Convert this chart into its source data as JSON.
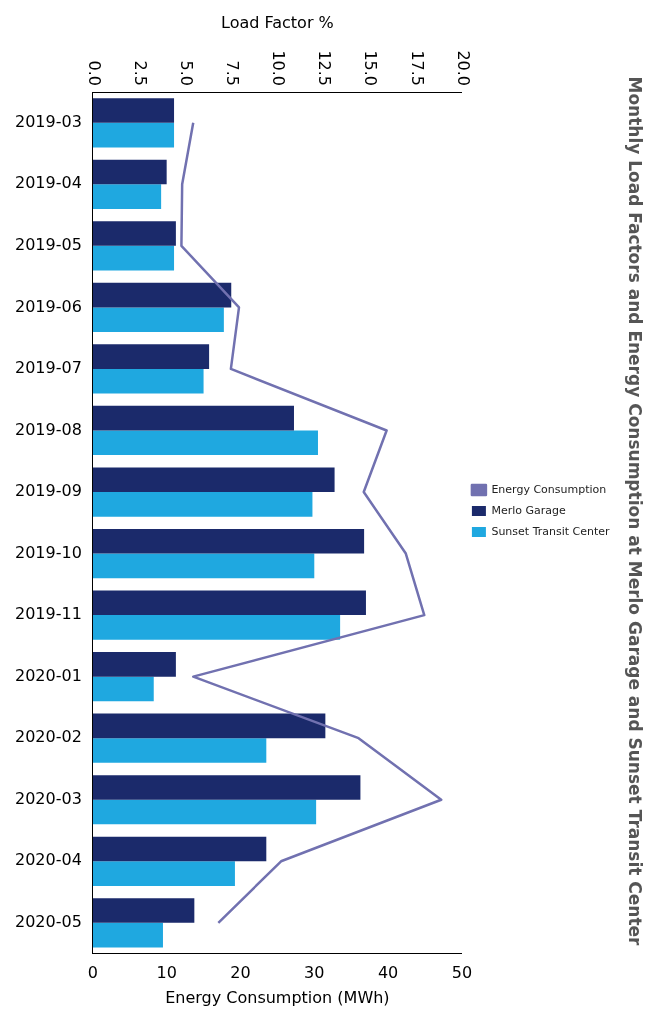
{
  "chart_data": {
    "type": "bar",
    "orientation": "horizontal",
    "title": "Monthly Load Factors and Energy Consumption at Merlo Garage and Sunset Transit Center",
    "xlabel": "Load Factor %",
    "x2label": "Energy Consumption (MWh)",
    "categories": [
      "2019-03",
      "2019-04",
      "2019-05",
      "2019-06",
      "2019-07",
      "2019-08",
      "2019-09",
      "2019-10",
      "2019-11",
      "2020-01",
      "2020-02",
      "2020-03",
      "2020-04",
      "2020-05"
    ],
    "series": [
      {
        "name": "Merlo Garage",
        "color": "#1b2a6b",
        "values": [
          4.4,
          4.0,
          4.5,
          7.5,
          6.3,
          10.9,
          13.1,
          14.7,
          14.8,
          4.5,
          12.6,
          14.5,
          9.4,
          5.5
        ]
      },
      {
        "name": "Sunset Transit Center",
        "color": "#1fa8e0",
        "values": [
          4.4,
          3.7,
          4.4,
          7.1,
          6.0,
          12.2,
          11.9,
          12.0,
          13.4,
          3.3,
          9.4,
          12.1,
          7.7,
          3.8
        ]
      },
      {
        "name": "Energy Consumption",
        "type": "line",
        "axis": "x2",
        "color": "#7171b0",
        "values": [
          13.6,
          12.1,
          12.0,
          19.8,
          18.7,
          39.8,
          36.7,
          42.4,
          44.9,
          13.6,
          36.0,
          47.2,
          25.5,
          17.0
        ]
      }
    ],
    "xlim": [
      0,
      20
    ],
    "xticks": [
      {
        "value": 0,
        "label": "0.0"
      },
      {
        "value": 2.5,
        "label": "2.5"
      },
      {
        "value": 5,
        "label": "5.0"
      },
      {
        "value": 7.5,
        "label": "7.5"
      },
      {
        "value": 10,
        "label": "10.0"
      },
      {
        "value": 12.5,
        "label": "12.5"
      },
      {
        "value": 15,
        "label": "15.0"
      },
      {
        "value": 17.5,
        "label": "17.5"
      },
      {
        "value": 20,
        "label": "20.0"
      }
    ],
    "x2lim": [
      0,
      50
    ],
    "x2ticks": [
      0,
      10,
      20,
      30,
      40,
      50
    ],
    "legend": "right"
  }
}
